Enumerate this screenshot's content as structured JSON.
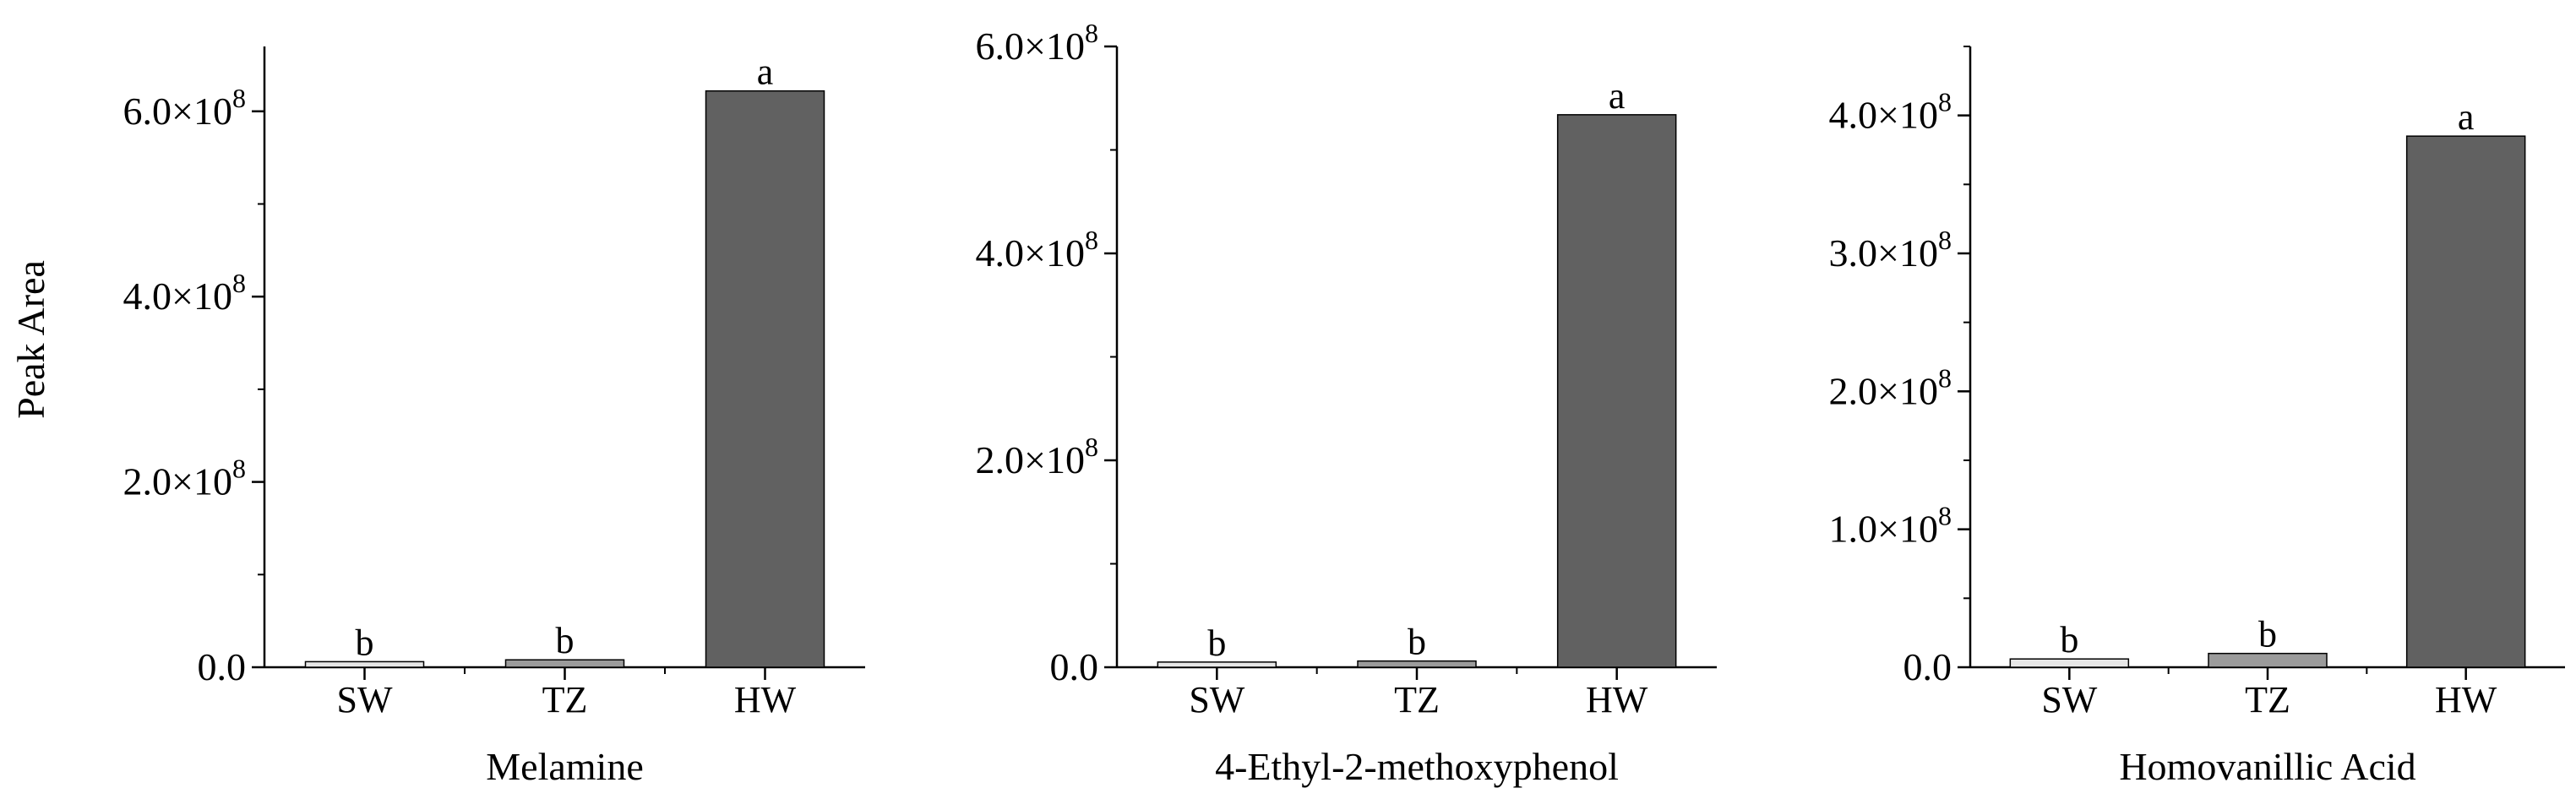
{
  "ylabel": "Peak Area",
  "chart_data": [
    {
      "type": "bar",
      "xlabel": "Melamine",
      "categories": [
        "SW",
        "TZ",
        "HW"
      ],
      "values": [
        6000000,
        8000000,
        622000000
      ],
      "significance": [
        "b",
        "b",
        "a"
      ],
      "colors": [
        "#e6e6e6",
        "#9b9b9b",
        "#616161"
      ],
      "ylim": [
        0,
        670000000
      ],
      "yticks": [
        0,
        200000000,
        400000000,
        600000000
      ],
      "ytick_labels": [
        {
          "mant": "0.0",
          "exp": ""
        },
        {
          "mant": "2.0×10",
          "exp": "8"
        },
        {
          "mant": "4.0×10",
          "exp": "8"
        },
        {
          "mant": "6.0×10",
          "exp": "8"
        }
      ]
    },
    {
      "type": "bar",
      "xlabel": "4-Ethyl-2-methoxyphenol",
      "categories": [
        "SW",
        "TZ",
        "HW"
      ],
      "values": [
        5000000,
        6000000,
        534000000
      ],
      "significance": [
        "b",
        "b",
        "a"
      ],
      "colors": [
        "#e6e6e6",
        "#9b9b9b",
        "#616161"
      ],
      "ylim": [
        0,
        600000000
      ],
      "yticks": [
        0,
        200000000,
        400000000,
        600000000
      ],
      "ytick_labels": [
        {
          "mant": "0.0",
          "exp": ""
        },
        {
          "mant": "2.0×10",
          "exp": "8"
        },
        {
          "mant": "4.0×10",
          "exp": "8"
        },
        {
          "mant": "6.0×10",
          "exp": "8"
        }
      ]
    },
    {
      "type": "bar",
      "xlabel": "Homovanillic Acid",
      "categories": [
        "SW",
        "TZ",
        "HW"
      ],
      "values": [
        6000000,
        10000000,
        385000000
      ],
      "significance": [
        "b",
        "b",
        "a"
      ],
      "colors": [
        "#e6e6e6",
        "#9b9b9b",
        "#616161"
      ],
      "ylim": [
        0,
        450000000
      ],
      "yticks": [
        0,
        100000000,
        200000000,
        300000000,
        400000000
      ],
      "ytick_labels": [
        {
          "mant": "0.0",
          "exp": ""
        },
        {
          "mant": "1.0×10",
          "exp": "8"
        },
        {
          "mant": "2.0×10",
          "exp": "8"
        },
        {
          "mant": "3.0×10",
          "exp": "8"
        },
        {
          "mant": "4.0×10",
          "exp": "8"
        }
      ]
    }
  ]
}
